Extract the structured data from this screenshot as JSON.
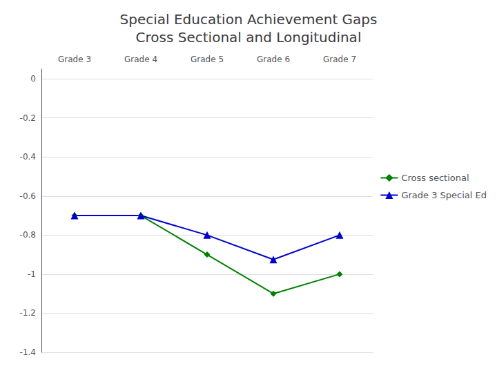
{
  "chart_data": {
    "type": "line",
    "title": "Special Education Achievement Gaps\nCross Sectional and Longitudinal",
    "categories": [
      "Grade 3",
      "Grade 4",
      "Grade 5",
      "Grade 6",
      "Grade 7"
    ],
    "series": [
      {
        "name": "Cross sectional",
        "color": "#008000",
        "marker": "diamond",
        "values": [
          -0.7,
          -0.7,
          -0.9,
          -1.1,
          -1.0
        ]
      },
      {
        "name": "Grade 3 Special Ed",
        "color": "#0000CC",
        "marker": "triangle",
        "values": [
          -0.7,
          -0.7,
          -0.8,
          -0.925,
          -0.8
        ]
      }
    ],
    "ylim": [
      -1.4,
      0.05
    ],
    "yticks": [
      0,
      -0.2,
      -0.4,
      -0.6,
      -0.8,
      -1,
      -1.2,
      -1.4
    ],
    "grid": true,
    "legend": "right"
  }
}
